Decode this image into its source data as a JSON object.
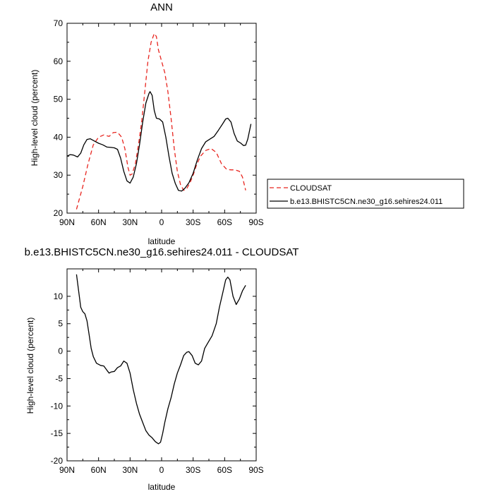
{
  "chart_data": [
    {
      "type": "line",
      "title": "ANN",
      "xlabel": "latitude",
      "ylabel": "High-level cloud (percent)",
      "xlim": [
        90,
        -90
      ],
      "ylim": [
        20,
        70
      ],
      "xticks": [
        90,
        60,
        30,
        0,
        -30,
        -60,
        -90
      ],
      "xtick_labels": [
        "90N",
        "60N",
        "30N",
        "0",
        "30S",
        "60S",
        "90S"
      ],
      "yticks": [
        20,
        30,
        40,
        50,
        60,
        70
      ],
      "ytick_labels": [
        "20",
        "30",
        "40",
        "50",
        "60",
        "70"
      ],
      "grid": false,
      "legend_position": "right",
      "series": [
        {
          "name": "CLOUDSAT",
          "color": "#e8251f",
          "style": "dashed",
          "points": [
            [
              81,
              21
            ],
            [
              75,
              27
            ],
            [
              70,
              33
            ],
            [
              65,
              38
            ],
            [
              60,
              40
            ],
            [
              55,
              40.6
            ],
            [
              50,
              40.2
            ],
            [
              46,
              41.2
            ],
            [
              42,
              41.3
            ],
            [
              38,
              40
            ],
            [
              35,
              37
            ],
            [
              32,
              32
            ],
            [
              30,
              30
            ],
            [
              28,
              30.3
            ],
            [
              25,
              33
            ],
            [
              22,
              38
            ],
            [
              19,
              44
            ],
            [
              16,
              52
            ],
            [
              13,
              60
            ],
            [
              10,
              65
            ],
            [
              7,
              67.3
            ],
            [
              5,
              66.5
            ],
            [
              3,
              63
            ],
            [
              0,
              60
            ],
            [
              -3,
              57
            ],
            [
              -6,
              52
            ],
            [
              -9,
              45
            ],
            [
              -12,
              37
            ],
            [
              -15,
              31
            ],
            [
              -18,
              27.5
            ],
            [
              -21,
              26
            ],
            [
              -24,
              26.5
            ],
            [
              -27,
              28
            ],
            [
              -30,
              30
            ],
            [
              -33,
              32.5
            ],
            [
              -37,
              35
            ],
            [
              -42,
              36.5
            ],
            [
              -47,
              37
            ],
            [
              -52,
              36
            ],
            [
              -57,
              33
            ],
            [
              -62,
              31.5
            ],
            [
              -66,
              31.4
            ],
            [
              -70,
              31.4
            ],
            [
              -74,
              31
            ],
            [
              -77,
              29.5
            ],
            [
              -80,
              26
            ]
          ]
        },
        {
          "name": "b.e13.BHISTC5CN.ne30_g16.sehires24.011",
          "color": "#000000",
          "style": "solid",
          "points": [
            [
              90,
              35
            ],
            [
              87,
              35.4
            ],
            [
              84,
              35.3
            ],
            [
              80,
              34.8
            ],
            [
              77,
              35.8
            ],
            [
              74,
              38
            ],
            [
              71,
              39.4
            ],
            [
              68,
              39.6
            ],
            [
              64,
              39
            ],
            [
              60,
              38.4
            ],
            [
              56,
              38
            ],
            [
              52,
              37.4
            ],
            [
              48,
              37.3
            ],
            [
              45,
              37.2
            ],
            [
              42,
              36.8
            ],
            [
              39,
              34.5
            ],
            [
              36,
              31
            ],
            [
              33,
              28.5
            ],
            [
              30,
              27.9
            ],
            [
              27,
              29.5
            ],
            [
              24,
              33
            ],
            [
              21,
              38
            ],
            [
              18,
              44
            ],
            [
              15,
              49
            ],
            [
              12,
              51.5
            ],
            [
              11,
              52
            ],
            [
              9,
              51
            ],
            [
              7,
              47
            ],
            [
              5,
              45
            ],
            [
              2,
              44.8
            ],
            [
              -1,
              44
            ],
            [
              -4,
              40
            ],
            [
              -7,
              35
            ],
            [
              -10,
              30.5
            ],
            [
              -13,
              27.8
            ],
            [
              -16,
              26
            ],
            [
              -19,
              25.8
            ],
            [
              -22,
              26.5
            ],
            [
              -26,
              28
            ],
            [
              -30,
              30.5
            ],
            [
              -34,
              34
            ],
            [
              -38,
              37
            ],
            [
              -42,
              38.8
            ],
            [
              -46,
              39.5
            ],
            [
              -50,
              40.2
            ],
            [
              -54,
              41.8
            ],
            [
              -58,
              43.5
            ],
            [
              -61,
              44.8
            ],
            [
              -63,
              45
            ],
            [
              -66,
              44
            ],
            [
              -69,
              41
            ],
            [
              -72,
              39
            ],
            [
              -75,
              38.5
            ],
            [
              -78,
              37.8
            ],
            [
              -80,
              37.9
            ],
            [
              -82,
              39.5
            ],
            [
              -85,
              43.5
            ]
          ]
        }
      ]
    },
    {
      "type": "line",
      "title": "b.e13.BHISTC5CN.ne30_g16.sehires24.011 - CLOUDSAT",
      "xlabel": "latitude",
      "ylabel": "High-level cloud (percent)",
      "xlim": [
        90,
        -90
      ],
      "ylim": [
        -20,
        15
      ],
      "xticks": [
        90,
        60,
        30,
        0,
        -30,
        -60,
        -90
      ],
      "xtick_labels": [
        "90N",
        "60N",
        "30N",
        "0",
        "30S",
        "60S",
        "90S"
      ],
      "yticks": [
        -20,
        -15,
        -10,
        -5,
        0,
        5,
        10
      ],
      "ytick_labels": [
        "-20",
        "-15",
        "-10",
        "-5",
        "0",
        "5",
        "10"
      ],
      "grid": false,
      "series": [
        {
          "color": "#000000",
          "style": "solid",
          "points": [
            [
              81,
              14
            ],
            [
              79,
              11
            ],
            [
              77,
              8
            ],
            [
              75,
              7.2
            ],
            [
              73,
              6.8
            ],
            [
              71,
              5.5
            ],
            [
              69,
              3
            ],
            [
              67,
              0.5
            ],
            [
              65,
              -1
            ],
            [
              62,
              -2.2
            ],
            [
              58,
              -2.6
            ],
            [
              55,
              -2.7
            ],
            [
              52,
              -3.5
            ],
            [
              50,
              -4
            ],
            [
              48,
              -3.8
            ],
            [
              45,
              -3.7
            ],
            [
              42,
              -3
            ],
            [
              39,
              -2.7
            ],
            [
              36,
              -1.8
            ],
            [
              33,
              -2.2
            ],
            [
              30,
              -4
            ],
            [
              27,
              -7
            ],
            [
              24,
              -9.5
            ],
            [
              21,
              -11.5
            ],
            [
              18,
              -13
            ],
            [
              15,
              -14.5
            ],
            [
              12,
              -15.3
            ],
            [
              9,
              -15.8
            ],
            [
              6,
              -16.5
            ],
            [
              3,
              -16.9
            ],
            [
              1,
              -16.6
            ],
            [
              -1,
              -15
            ],
            [
              -3,
              -13
            ],
            [
              -6,
              -10.5
            ],
            [
              -9,
              -8.5
            ],
            [
              -12,
              -6
            ],
            [
              -15,
              -4
            ],
            [
              -18,
              -2.5
            ],
            [
              -21,
              -0.8
            ],
            [
              -24,
              -0.2
            ],
            [
              -26,
              -0.1
            ],
            [
              -29,
              -0.8
            ],
            [
              -32,
              -2.2
            ],
            [
              -35,
              -2.5
            ],
            [
              -38,
              -1.8
            ],
            [
              -41,
              0.5
            ],
            [
              -44,
              1.5
            ],
            [
              -48,
              2.8
            ],
            [
              -52,
              5
            ],
            [
              -55,
              8
            ],
            [
              -58,
              10.5
            ],
            [
              -61,
              13
            ],
            [
              -63,
              13.5
            ],
            [
              -65,
              13
            ],
            [
              -68,
              10
            ],
            [
              -71,
              8.5
            ],
            [
              -74,
              9.5
            ],
            [
              -77,
              11
            ],
            [
              -80,
              12
            ]
          ]
        }
      ]
    }
  ]
}
